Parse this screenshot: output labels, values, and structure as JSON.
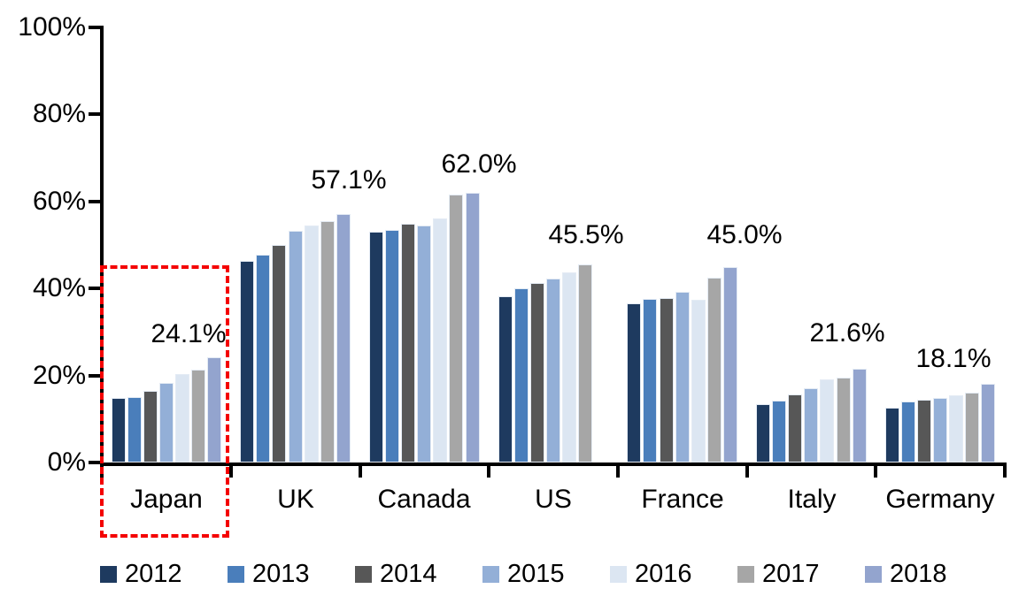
{
  "chart_data": {
    "type": "bar",
    "title": "",
    "unit": "%",
    "categories": [
      "Japan",
      "UK",
      "Canada",
      "US",
      "France",
      "Italy",
      "Germany"
    ],
    "series": [
      {
        "name": "2012",
        "color": "#1e3a5f",
        "values": [
          14.8,
          46.3,
          53.0,
          38.3,
          36.6,
          13.5,
          12.7
        ]
      },
      {
        "name": "2013",
        "color": "#4a7ebb",
        "values": [
          15.0,
          47.8,
          53.4,
          40.1,
          37.6,
          14.3,
          14.1
        ]
      },
      {
        "name": "2014",
        "color": "#575757",
        "values": [
          16.5,
          49.9,
          54.8,
          41.3,
          37.8,
          15.6,
          14.5
        ]
      },
      {
        "name": "2015",
        "color": "#93afd7",
        "values": [
          18.2,
          53.3,
          54.5,
          42.3,
          39.3,
          17.1,
          14.8
        ]
      },
      {
        "name": "2016",
        "color": "#dce6f2",
        "values": [
          20.3,
          54.5,
          56.1,
          43.8,
          37.4,
          19.2,
          15.4
        ]
      },
      {
        "name": "2017",
        "color": "#a6a6a6",
        "values": [
          21.3,
          55.5,
          61.5,
          45.5,
          42.4,
          19.5,
          16.1
        ]
      },
      {
        "name": "2018",
        "color": "#93a4ce",
        "values": [
          24.1,
          57.1,
          62.0,
          null,
          45.0,
          21.6,
          18.1
        ]
      }
    ],
    "data_labels": [
      "24.1%",
      "57.1%",
      "62.0%",
      "45.5%",
      "45.0%",
      "21.6%",
      "18.1%"
    ],
    "y_ticks": [
      "0%",
      "20%",
      "40%",
      "60%",
      "80%",
      "100%"
    ],
    "ylim": [
      0,
      100
    ],
    "grid": false,
    "legend_position": "bottom",
    "highlight": {
      "category": "Japan",
      "shape": "dashed-rectangle",
      "color": "#f40000"
    }
  }
}
